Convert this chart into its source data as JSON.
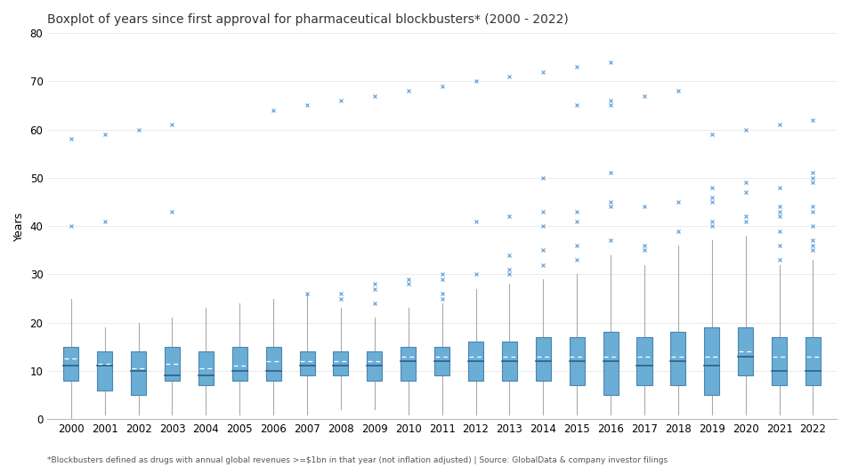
{
  "title": "Boxplot of years since first approval for pharmaceutical blockbusters* (2000 - 2022)",
  "ylabel": "Years",
  "footnote": "*Blockbusters defined as drugs with annual global revenues >=$1bn in that year (not inflation adjusted) | Source: GlobalData & company investor filings",
  "years": [
    2000,
    2001,
    2002,
    2003,
    2004,
    2005,
    2006,
    2007,
    2008,
    2009,
    2010,
    2011,
    2012,
    2013,
    2014,
    2015,
    2016,
    2017,
    2018,
    2019,
    2020,
    2021,
    2022
  ],
  "box_data": {
    "2000": {
      "q1": 8,
      "median": 11,
      "q3": 15,
      "mean": 12.5,
      "whislo": 0,
      "whishi": 25,
      "fliers": [
        40,
        58
      ]
    },
    "2001": {
      "q1": 6,
      "median": 11,
      "q3": 14,
      "mean": 11.5,
      "whislo": 1,
      "whishi": 19,
      "fliers": [
        41,
        59
      ]
    },
    "2002": {
      "q1": 5,
      "median": 10,
      "q3": 14,
      "mean": 10.5,
      "whislo": 1,
      "whishi": 20,
      "fliers": [
        60
      ]
    },
    "2003": {
      "q1": 8,
      "median": 9,
      "q3": 15,
      "mean": 11.5,
      "whislo": 1,
      "whishi": 21,
      "fliers": [
        43,
        61
      ]
    },
    "2004": {
      "q1": 7,
      "median": 9,
      "q3": 14,
      "mean": 10.5,
      "whislo": 1,
      "whishi": 23,
      "fliers": []
    },
    "2005": {
      "q1": 8,
      "median": 10,
      "q3": 15,
      "mean": 11.0,
      "whislo": 1,
      "whishi": 24,
      "fliers": []
    },
    "2006": {
      "q1": 8,
      "median": 10,
      "q3": 15,
      "mean": 12.0,
      "whislo": 1,
      "whishi": 25,
      "fliers": [
        64
      ]
    },
    "2007": {
      "q1": 9,
      "median": 11,
      "q3": 14,
      "mean": 12.0,
      "whislo": 1,
      "whishi": 26,
      "fliers": [
        26,
        65
      ]
    },
    "2008": {
      "q1": 9,
      "median": 11,
      "q3": 14,
      "mean": 12.0,
      "whislo": 2,
      "whishi": 23,
      "fliers": [
        25,
        26,
        66
      ]
    },
    "2009": {
      "q1": 8,
      "median": 11,
      "q3": 14,
      "mean": 12.0,
      "whislo": 2,
      "whishi": 21,
      "fliers": [
        24,
        27,
        28,
        67
      ]
    },
    "2010": {
      "q1": 8,
      "median": 12,
      "q3": 15,
      "mean": 13.0,
      "whislo": 1,
      "whishi": 23,
      "fliers": [
        28,
        29,
        68
      ]
    },
    "2011": {
      "q1": 9,
      "median": 12,
      "q3": 15,
      "mean": 13.0,
      "whislo": 1,
      "whishi": 24,
      "fliers": [
        25,
        26,
        29,
        30,
        69
      ]
    },
    "2012": {
      "q1": 8,
      "median": 12,
      "q3": 16,
      "mean": 13.0,
      "whislo": 1,
      "whishi": 27,
      "fliers": [
        30,
        41,
        70
      ]
    },
    "2013": {
      "q1": 8,
      "median": 12,
      "q3": 16,
      "mean": 13.0,
      "whislo": 1,
      "whishi": 28,
      "fliers": [
        30,
        31,
        34,
        42,
        71
      ]
    },
    "2014": {
      "q1": 8,
      "median": 12,
      "q3": 17,
      "mean": 13.0,
      "whislo": 1,
      "whishi": 29,
      "fliers": [
        32,
        35,
        40,
        43,
        50,
        72
      ]
    },
    "2015": {
      "q1": 7,
      "median": 12,
      "q3": 17,
      "mean": 13.0,
      "whislo": 1,
      "whishi": 30,
      "fliers": [
        33,
        36,
        41,
        43,
        65,
        73
      ]
    },
    "2016": {
      "q1": 5,
      "median": 12,
      "q3": 18,
      "mean": 13.0,
      "whislo": 1,
      "whishi": 34,
      "fliers": [
        37,
        44,
        45,
        51,
        65,
        66,
        74
      ]
    },
    "2017": {
      "q1": 7,
      "median": 11,
      "q3": 17,
      "mean": 13.0,
      "whislo": 1,
      "whishi": 32,
      "fliers": [
        35,
        36,
        44,
        67
      ]
    },
    "2018": {
      "q1": 7,
      "median": 12,
      "q3": 18,
      "mean": 13.0,
      "whislo": 1,
      "whishi": 36,
      "fliers": [
        39,
        45,
        68
      ]
    },
    "2019": {
      "q1": 5,
      "median": 11,
      "q3": 19,
      "mean": 13.0,
      "whislo": 1,
      "whishi": 37,
      "fliers": [
        40,
        41,
        45,
        46,
        48,
        59
      ]
    },
    "2020": {
      "q1": 9,
      "median": 13,
      "q3": 19,
      "mean": 14.0,
      "whislo": 1,
      "whishi": 38,
      "fliers": [
        41,
        42,
        47,
        49,
        60
      ]
    },
    "2021": {
      "q1": 7,
      "median": 10,
      "q3": 17,
      "mean": 13.0,
      "whislo": 1,
      "whishi": 32,
      "fliers": [
        33,
        36,
        39,
        42,
        43,
        44,
        48,
        61
      ]
    },
    "2022": {
      "q1": 7,
      "median": 10,
      "q3": 17,
      "mean": 13.0,
      "whislo": 1,
      "whishi": 33,
      "fliers": [
        35,
        36,
        37,
        40,
        43,
        44,
        49,
        50,
        51,
        62
      ]
    }
  },
  "box_facecolor": "#6aaed6",
  "box_edgecolor": "#4a86b0",
  "whisker_color": "#aaaaaa",
  "median_color": "#2c5f85",
  "mean_color": "#ffffff",
  "flier_color": "#5b9bd5",
  "background_color": "#ffffff",
  "ylim": [
    0,
    80
  ],
  "yticks": [
    0,
    10,
    20,
    30,
    40,
    50,
    60,
    70,
    80
  ],
  "box_width": 0.45,
  "title_fontsize": 10,
  "axis_label_fontsize": 9,
  "tick_fontsize": 8.5,
  "footnote_fontsize": 6.5
}
